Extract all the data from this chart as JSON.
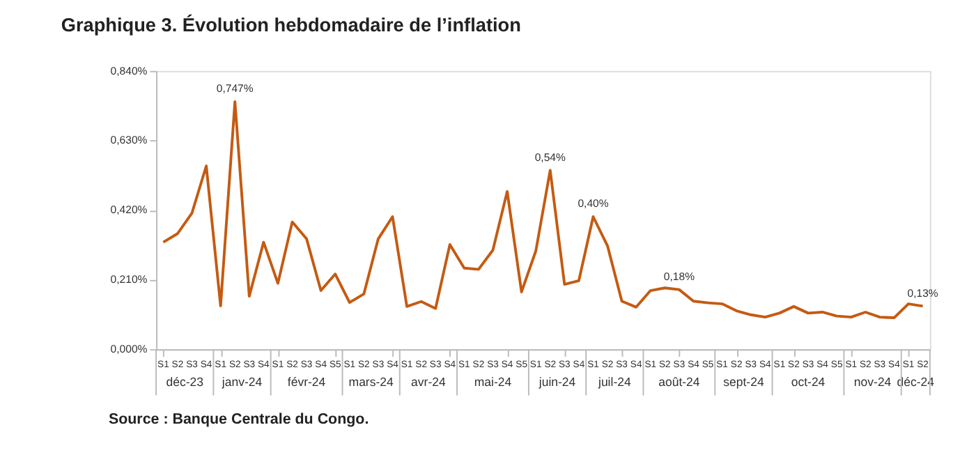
{
  "chart_data": {
    "type": "line",
    "title": "Graphique 3. Évolution hebdomadaire de l’inflation",
    "categories": [
      "S1",
      "S2",
      "S3",
      "S4",
      "S1",
      "S2",
      "S3",
      "S4",
      "S1",
      "S2",
      "S3",
      "S4",
      "S5",
      "S1",
      "S2",
      "S3",
      "S4",
      "S1",
      "S2",
      "S3",
      "S4",
      "S1",
      "S2",
      "S3",
      "S4",
      "S5",
      "S1",
      "S2",
      "S3",
      "S4",
      "S1",
      "S2",
      "S3",
      "S4",
      "S1",
      "S2",
      "S3",
      "S4",
      "S5",
      "S1",
      "S2",
      "S3",
      "S4",
      "S1",
      "S2",
      "S3",
      "S4",
      "S5",
      "S1",
      "S2",
      "S3",
      "S4",
      "S1",
      "S2"
    ],
    "series": [
      {
        "color": "#c55a11",
        "values": [
          0.323,
          0.349,
          0.411,
          0.553,
          0.131,
          0.747,
          0.16,
          0.323,
          0.199,
          0.384,
          0.333,
          0.177,
          0.227,
          0.141,
          0.167,
          0.333,
          0.4,
          0.129,
          0.144,
          0.123,
          0.316,
          0.245,
          0.241,
          0.299,
          0.476,
          0.173,
          0.297,
          0.54,
          0.196,
          0.207,
          0.4,
          0.312,
          0.145,
          0.127,
          0.177,
          0.185,
          0.18,
          0.145,
          0.14,
          0.137,
          0.116,
          0.104,
          0.097,
          0.109,
          0.129,
          0.109,
          0.112,
          0.1,
          0.097,
          0.112,
          0.097,
          0.095,
          0.137,
          0.13
        ],
        "value_labels": [
          null,
          null,
          null,
          null,
          null,
          "0,747%",
          null,
          null,
          null,
          null,
          null,
          null,
          null,
          null,
          null,
          null,
          null,
          null,
          null,
          null,
          null,
          null,
          null,
          null,
          null,
          null,
          null,
          "0,54%",
          null,
          null,
          "0,40%",
          null,
          null,
          null,
          null,
          null,
          "0,18%",
          null,
          null,
          null,
          null,
          null,
          null,
          null,
          null,
          null,
          null,
          null,
          null,
          null,
          null,
          null,
          null,
          "0,13%"
        ]
      }
    ],
    "ylim": [
      0,
      0.84
    ],
    "yticks": [
      {
        "value": 0,
        "label": "0,000%"
      },
      {
        "value": 0.21,
        "label": "0,210%"
      },
      {
        "value": 0.42,
        "label": "0,420%"
      },
      {
        "value": 0.63,
        "label": "0,630%"
      },
      {
        "value": 0.84,
        "label": "0,840%"
      }
    ],
    "grid": false,
    "annotations": [
      "déc-23",
      "janv-24",
      "févr-24",
      "mars-24",
      "avr-24",
      "mai-24",
      "juin-24",
      "juil-24",
      "août-24",
      "sept-24",
      "oct-24",
      "nov-24",
      "déc-24",
      "Source : Banque Centrale du Congo."
    ]
  }
}
